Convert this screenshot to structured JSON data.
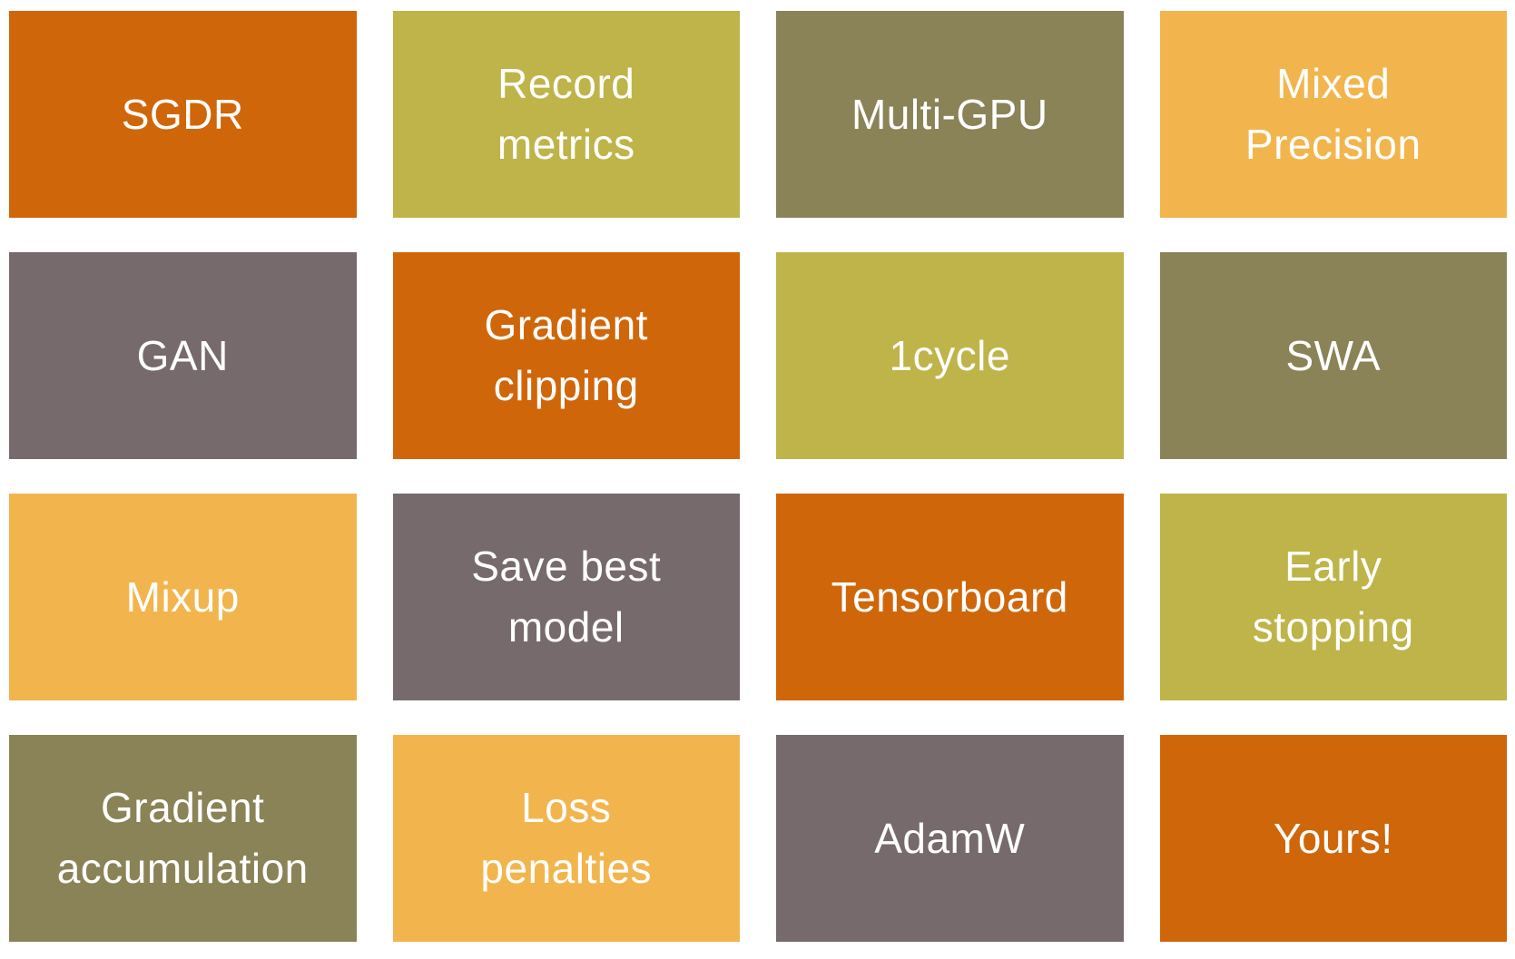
{
  "slide": {
    "background": "#ffffff",
    "text_color": "#ffffff",
    "palette": {
      "orange": "#d0660a",
      "chartreuse": "#beb449",
      "olive": "#8a8357",
      "gold": "#f2b54d",
      "taupe": "#766a6c"
    },
    "tiles": [
      {
        "label": "SGDR",
        "color": "orange"
      },
      {
        "label": "Record\nmetrics",
        "color": "chartreuse"
      },
      {
        "label": "Multi-GPU",
        "color": "olive"
      },
      {
        "label": "Mixed\nPrecision",
        "color": "gold"
      },
      {
        "label": "GAN",
        "color": "taupe"
      },
      {
        "label": "Gradient\nclipping",
        "color": "orange"
      },
      {
        "label": "1cycle",
        "color": "chartreuse"
      },
      {
        "label": "SWA",
        "color": "olive"
      },
      {
        "label": "Mixup",
        "color": "gold"
      },
      {
        "label": "Save best\nmodel",
        "color": "taupe"
      },
      {
        "label": "Tensorboard",
        "color": "orange"
      },
      {
        "label": "Early\nstopping",
        "color": "chartreuse"
      },
      {
        "label": "Gradient\naccumulation",
        "color": "olive"
      },
      {
        "label": "Loss\npenalties",
        "color": "gold"
      },
      {
        "label": "AdamW",
        "color": "taupe"
      },
      {
        "label": "Yours!",
        "color": "orange"
      }
    ]
  }
}
